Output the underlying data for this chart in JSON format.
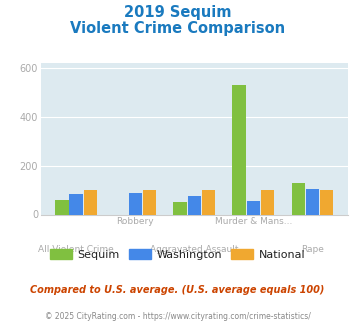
{
  "title_line1": "2019 Sequim",
  "title_line2": "Violent Crime Comparison",
  "categories": [
    "All Violent Crime",
    "Robbery",
    "Aggravated Assault",
    "Murder & Mans...",
    "Rape"
  ],
  "sequim": [
    60,
    0,
    52,
    527,
    128
  ],
  "washington": [
    82,
    88,
    75,
    55,
    105
  ],
  "national": [
    100,
    100,
    100,
    100,
    100
  ],
  "color_sequim": "#80c040",
  "color_washington": "#4488e8",
  "color_national": "#f0a830",
  "ylim": [
    0,
    620
  ],
  "yticks": [
    0,
    200,
    400,
    600
  ],
  "background_color": "#ddeaf0",
  "footer_line1": "Compared to U.S. average. (U.S. average equals 100)",
  "footer_line2": "© 2025 CityRating.com - https://www.cityrating.com/crime-statistics/",
  "legend_labels": [
    "Sequim",
    "Washington",
    "National"
  ],
  "title_color": "#1a7abf",
  "label_color": "#aaaaaa",
  "footer1_color": "#cc4400",
  "footer2_color": "#888888"
}
